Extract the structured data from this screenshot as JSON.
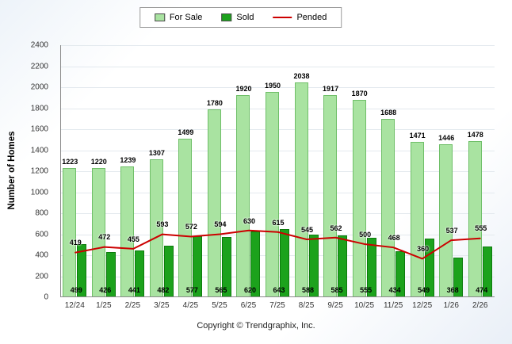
{
  "footer": {
    "copyright": "Copyright © Trendgraphix, Inc."
  },
  "chart_data": {
    "type": "bar",
    "title": "",
    "ylabel": "Number of Homes",
    "xlabel": "",
    "ylim": [
      0,
      2400
    ],
    "ytick_step": 200,
    "grid": true,
    "legend_position": "top-center",
    "categories": [
      "12/24",
      "1/25",
      "2/25",
      "3/25",
      "4/25",
      "5/25",
      "6/25",
      "7/25",
      "8/25",
      "9/25",
      "10/25",
      "11/25",
      "12/25",
      "1/26",
      "2/26"
    ],
    "series": [
      {
        "name": "For Sale",
        "render": "bar",
        "color": "#a9e3a1",
        "values": [
          1223,
          1220,
          1239,
          1307,
          1499,
          1780,
          1920,
          1950,
          2038,
          1917,
          1870,
          1688,
          1471,
          1446,
          1478
        ]
      },
      {
        "name": "Sold",
        "render": "bar",
        "color": "#1ca21c",
        "values": [
          499,
          426,
          441,
          482,
          577,
          565,
          620,
          643,
          588,
          585,
          555,
          434,
          549,
          368,
          474
        ]
      },
      {
        "name": "Pended",
        "render": "line",
        "color": "#cc0000",
        "values": [
          419,
          472,
          455,
          593,
          572,
          594,
          630,
          615,
          545,
          562,
          500,
          468,
          360,
          537,
          555
        ]
      }
    ]
  }
}
